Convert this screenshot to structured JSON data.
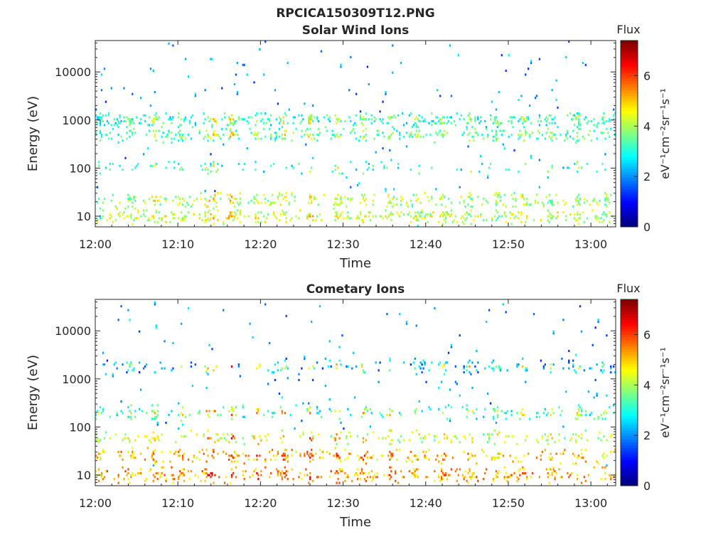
{
  "figure": {
    "title": "RPCICA150309T12.PNG"
  },
  "colorbar": {
    "label": "Flux",
    "unit_label": "eV⁻¹cm⁻²sr⁻¹s⁻¹",
    "min": 0,
    "max": 7.4,
    "ticks": [
      0,
      2,
      4,
      6
    ],
    "colormap": "jet"
  },
  "chart_data": [
    {
      "type": "heatmap",
      "title": "Solar Wind Ions",
      "xlabel": "Time",
      "ylabel": "Energy (eV)",
      "yscale": "log",
      "x_ticks": [
        "12:00",
        "12:10",
        "12:20",
        "12:30",
        "12:40",
        "12:50",
        "13:00"
      ],
      "x_tick_minutes": [
        0,
        10,
        20,
        30,
        40,
        50,
        60
      ],
      "xlim_minutes": [
        0,
        63
      ],
      "y_ticks": [
        10,
        100,
        1000,
        10000
      ],
      "ylim": [
        6,
        45000
      ],
      "energy_bands": [
        {
          "energy": 1000,
          "center_flux": 3.0,
          "occupancy": 0.45
        },
        {
          "energy": 500,
          "center_flux": 3.3,
          "occupancy": 0.35
        },
        {
          "energy": 100,
          "center_flux": 2.8,
          "occupancy": 0.12
        },
        {
          "energy": 22,
          "center_flux": 4.0,
          "occupancy": 0.38
        },
        {
          "energy": 10,
          "center_flux": 4.2,
          "occupancy": 0.4
        }
      ],
      "events": [
        {
          "minute": 0.5,
          "flux": 3.0
        },
        {
          "minute": 4.2,
          "flux": 3.4
        },
        {
          "minute": 7.1,
          "flux": 4.6
        },
        {
          "minute": 10.4,
          "flux": 3.8
        },
        {
          "minute": 13.5,
          "flux": 4.4
        },
        {
          "minute": 14.3,
          "flux": 5.2
        },
        {
          "minute": 16.4,
          "flux": 5.5
        },
        {
          "minute": 19.6,
          "flux": 4.8
        },
        {
          "minute": 22.7,
          "flux": 4.9
        },
        {
          "minute": 25.9,
          "flux": 5.0
        },
        {
          "minute": 29.2,
          "flux": 4.7
        },
        {
          "minute": 32.4,
          "flux": 4.6
        },
        {
          "minute": 35.6,
          "flux": 4.3
        },
        {
          "minute": 38.8,
          "flux": 4.1
        },
        {
          "minute": 42.1,
          "flux": 4.2
        },
        {
          "minute": 45.3,
          "flux": 4.0
        },
        {
          "minute": 48.5,
          "flux": 3.6
        },
        {
          "minute": 51.8,
          "flux": 4.4
        },
        {
          "minute": 55.0,
          "flux": 3.7
        },
        {
          "minute": 58.3,
          "flux": 4.1
        },
        {
          "minute": 61.5,
          "flux": 3.5
        }
      ]
    },
    {
      "type": "heatmap",
      "title": "Cometary Ions",
      "xlabel": "Time",
      "ylabel": "Energy (eV)",
      "yscale": "log",
      "x_ticks": [
        "12:00",
        "12:10",
        "12:20",
        "12:30",
        "12:40",
        "12:50",
        "13:00"
      ],
      "x_tick_minutes": [
        0,
        10,
        20,
        30,
        40,
        50,
        60
      ],
      "xlim_minutes": [
        0,
        63
      ],
      "y_ticks": [
        10,
        100,
        1000,
        10000
      ],
      "ylim": [
        6,
        45000
      ],
      "energy_bands": [
        {
          "energy": 1800,
          "center_flux": 2.0,
          "occupancy": 0.18
        },
        {
          "energy": 200,
          "center_flux": 3.0,
          "occupancy": 0.2
        },
        {
          "energy": 60,
          "center_flux": 4.0,
          "occupancy": 0.22
        },
        {
          "energy": 25,
          "center_flux": 5.0,
          "occupancy": 0.3
        },
        {
          "energy": 10,
          "center_flux": 5.3,
          "occupancy": 0.35
        }
      ],
      "events": [
        {
          "minute": 0.5,
          "flux": 4.4
        },
        {
          "minute": 4.2,
          "flux": 4.6
        },
        {
          "minute": 7.1,
          "flux": 5.6
        },
        {
          "minute": 10.4,
          "flux": 5.3
        },
        {
          "minute": 13.5,
          "flux": 6.0
        },
        {
          "minute": 14.3,
          "flux": 6.5
        },
        {
          "minute": 16.4,
          "flux": 6.6
        },
        {
          "minute": 19.6,
          "flux": 6.4
        },
        {
          "minute": 22.7,
          "flux": 6.2
        },
        {
          "minute": 25.9,
          "flux": 6.3
        },
        {
          "minute": 29.2,
          "flux": 6.1
        },
        {
          "minute": 32.4,
          "flux": 6.0
        },
        {
          "minute": 35.6,
          "flux": 5.6
        },
        {
          "minute": 38.8,
          "flux": 5.0
        },
        {
          "minute": 42.1,
          "flux": 5.4
        },
        {
          "minute": 45.3,
          "flux": 5.2
        },
        {
          "minute": 48.5,
          "flux": 4.6
        },
        {
          "minute": 51.8,
          "flux": 5.4
        },
        {
          "minute": 55.0,
          "flux": 4.8
        },
        {
          "minute": 58.3,
          "flux": 5.2
        },
        {
          "minute": 61.5,
          "flux": 4.4
        }
      ]
    }
  ]
}
